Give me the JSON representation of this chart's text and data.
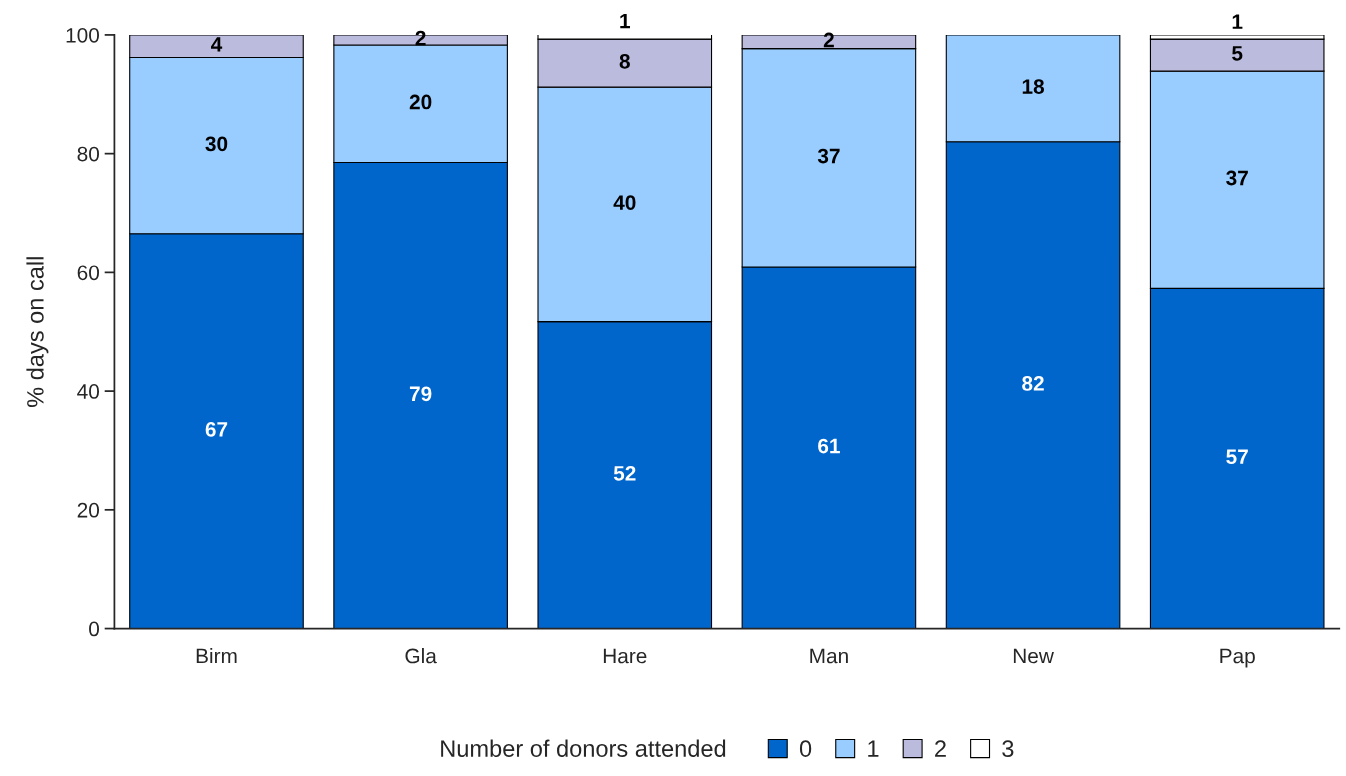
{
  "chart_data": {
    "type": "bar",
    "stacked": true,
    "categories": [
      "Birm",
      "Gla",
      "Hare",
      "Man",
      "New",
      "Pap"
    ],
    "ylabel": "% days on call",
    "legend_title": "Number of donors attended",
    "legend": "bottom",
    "ylim": [
      0,
      100
    ],
    "yticks": [
      0,
      20,
      40,
      60,
      80,
      100
    ],
    "grid": false,
    "series": [
      {
        "name": "0",
        "color": "#0066cc",
        "values": [
          66.5,
          78.5,
          51.7,
          60.9,
          82.0,
          57.3
        ],
        "value_labels": [
          "67",
          "79",
          "52",
          "61",
          "82",
          "57"
        ]
      },
      {
        "name": "1",
        "color": "#99ccff",
        "values": [
          29.7,
          19.8,
          39.5,
          36.8,
          18.0,
          36.6
        ],
        "value_labels": [
          "30",
          "20",
          "40",
          "37",
          "18",
          "37"
        ]
      },
      {
        "name": "2",
        "color": "#bbbbdd",
        "values": [
          3.8,
          1.7,
          8.1,
          2.3,
          null,
          5.4
        ],
        "value_labels": [
          "4",
          "2",
          "8",
          "2",
          null,
          "5"
        ]
      },
      {
        "name": "3",
        "color": "#ffffff",
        "values": [
          null,
          null,
          0.8,
          null,
          null,
          0.7
        ],
        "value_labels": [
          null,
          null,
          "1",
          null,
          null,
          "1"
        ]
      }
    ]
  }
}
